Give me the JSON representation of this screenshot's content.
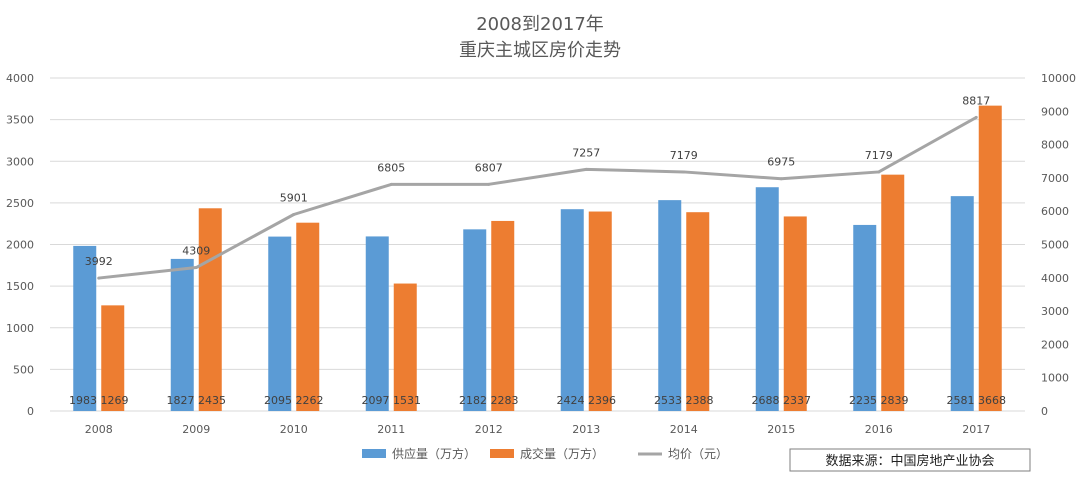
{
  "chart_data": {
    "type": "bar",
    "title": "2008到2017年",
    "subtitle": "重庆主城区房价走势",
    "categories": [
      "2008",
      "2009",
      "2010",
      "2011",
      "2012",
      "2013",
      "2014",
      "2015",
      "2016",
      "2017"
    ],
    "series": [
      {
        "name": "供应量（万方）",
        "type": "bar",
        "axis": "left",
        "color": "#5B9BD5",
        "values": [
          1983,
          1827,
          2095,
          2097,
          2182,
          2424,
          2533,
          2688,
          2235,
          2581
        ]
      },
      {
        "name": "成交量（万方）",
        "type": "bar",
        "axis": "left",
        "color": "#ED7D31",
        "values": [
          1269,
          2435,
          2262,
          1531,
          2283,
          2396,
          2388,
          2337,
          2839,
          3668
        ]
      },
      {
        "name": "均价（元）",
        "type": "line",
        "axis": "right",
        "color": "#A5A5A5",
        "values": [
          3992,
          4309,
          5901,
          6805,
          6807,
          7257,
          7179,
          6975,
          7179,
          8817
        ]
      }
    ],
    "y_left": {
      "min": 0,
      "max": 4000,
      "step": 500,
      "ticks": [
        "0",
        "500",
        "1000",
        "1500",
        "2000",
        "2500",
        "3000",
        "3500",
        "4000"
      ]
    },
    "y_right": {
      "min": 0,
      "max": 10000,
      "step": 1000,
      "ticks": [
        "0",
        "1000",
        "2000",
        "3000",
        "4000",
        "5000",
        "6000",
        "7000",
        "8000",
        "9000",
        "10000"
      ]
    },
    "grid": true,
    "legend_position": "bottom"
  },
  "source_note": "数据来源：中国房地产业协会"
}
